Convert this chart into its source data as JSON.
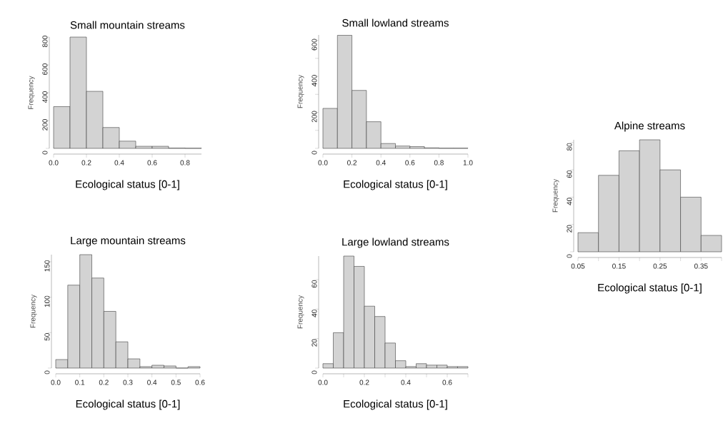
{
  "chart_data": [
    {
      "type": "histogram",
      "title": "Small mountain streams",
      "xlabel": "Ecological status [0-1]",
      "ylabel": "Frequency",
      "color": "#d3d3d3",
      "bins": [
        0,
        0.1,
        0.2,
        0.3,
        0.4,
        0.5,
        0.6,
        0.7,
        0.8,
        0.9
      ],
      "values": [
        300,
        800,
        410,
        150,
        52,
        15,
        15,
        2,
        1
      ],
      "xlim": [
        0,
        0.9
      ],
      "ylim": [
        0,
        800
      ],
      "xticks": [
        {
          "value": 0,
          "label": "0.0"
        },
        0.2,
        0.4,
        0.6,
        0.8
      ],
      "yticks": [
        0,
        200,
        400,
        600,
        800
      ]
    },
    {
      "type": "histogram",
      "title": "Small lowland streams",
      "xlabel": "Ecological status [0-1]",
      "ylabel": "Frequency",
      "color": "#d3d3d3",
      "bins": [
        0,
        0.1,
        0.2,
        0.3,
        0.4,
        0.5,
        0.6,
        0.7,
        0.8,
        0.9,
        1.0
      ],
      "values": [
        222,
        628,
        322,
        148,
        27,
        13,
        10,
        3,
        1,
        1
      ],
      "xlim": [
        0,
        1
      ],
      "ylim": [
        0,
        630
      ],
      "xticks": [
        {
          "value": 0,
          "label": "0.0"
        },
        0.2,
        0.4,
        0.6,
        0.8,
        {
          "value": 1,
          "label": "1.0"
        }
      ],
      "yticks": [
        0,
        {
          "value": 100,
          "label": null
        },
        200,
        {
          "value": 300,
          "label": null
        },
        400,
        {
          "value": 500,
          "label": null
        },
        600
      ]
    },
    {
      "type": "histogram",
      "title": "Large mountain streams",
      "xlabel": "Ecological status [0-1]",
      "ylabel": "Frequency",
      "color": "#d3d3d3",
      "bins": [
        0,
        0.05,
        0.1,
        0.15,
        0.2,
        0.25,
        0.3,
        0.35,
        0.4,
        0.45,
        0.5,
        0.55,
        0.6
      ],
      "values": [
        12,
        117,
        160,
        127,
        80,
        37,
        13,
        2,
        4,
        3,
        0,
        2
      ],
      "xlim": [
        0,
        0.6
      ],
      "ylim": [
        0,
        160
      ],
      "xticks": [
        {
          "value": 0,
          "label": "0.0"
        },
        0.1,
        0.2,
        0.3,
        0.4,
        0.5,
        0.6
      ],
      "yticks": [
        0,
        50,
        100,
        150
      ]
    },
    {
      "type": "histogram",
      "title": "Large lowland streams",
      "xlabel": "Ecological status [0-1]",
      "ylabel": "Frequency",
      "color": "#d3d3d3",
      "bins": [
        0,
        0.05,
        0.1,
        0.15,
        0.2,
        0.25,
        0.3,
        0.35,
        0.4,
        0.45,
        0.5,
        0.55,
        0.6,
        0.65,
        0.7
      ],
      "values": [
        3,
        24,
        76,
        69,
        42,
        35,
        17,
        5,
        1,
        3,
        2,
        2,
        1,
        1
      ],
      "xlim": [
        0,
        0.7
      ],
      "ylim": [
        0,
        76
      ],
      "xticks": [
        {
          "value": 0,
          "label": "0.0"
        },
        {
          "value": 0.1,
          "label": null
        },
        0.2,
        {
          "value": 0.3,
          "label": null
        },
        0.4,
        {
          "value": 0.5,
          "label": null
        },
        0.6,
        {
          "value": 0.7,
          "label": null
        }
      ],
      "yticks": [
        0,
        20,
        40,
        60
      ]
    },
    {
      "type": "histogram",
      "title": "Alpine streams",
      "xlabel": "Ecological status [0-1]",
      "ylabel": "Frequency",
      "color": "#d3d3d3",
      "bins": [
        0.05,
        0.1,
        0.15,
        0.2,
        0.25,
        0.3,
        0.35,
        0.4
      ],
      "values": [
        14,
        56,
        74,
        82,
        60,
        40,
        12
      ],
      "xlim": [
        0.05,
        0.4
      ],
      "ylim": [
        0,
        82
      ],
      "xticks": [
        0.05,
        {
          "value": 0.1,
          "label": null
        },
        0.15,
        {
          "value": 0.2,
          "label": null
        },
        0.25,
        {
          "value": 0.3,
          "label": null
        },
        0.35,
        {
          "value": 0.4,
          "label": null
        }
      ],
      "yticks": [
        0,
        20,
        40,
        60,
        80
      ]
    }
  ]
}
